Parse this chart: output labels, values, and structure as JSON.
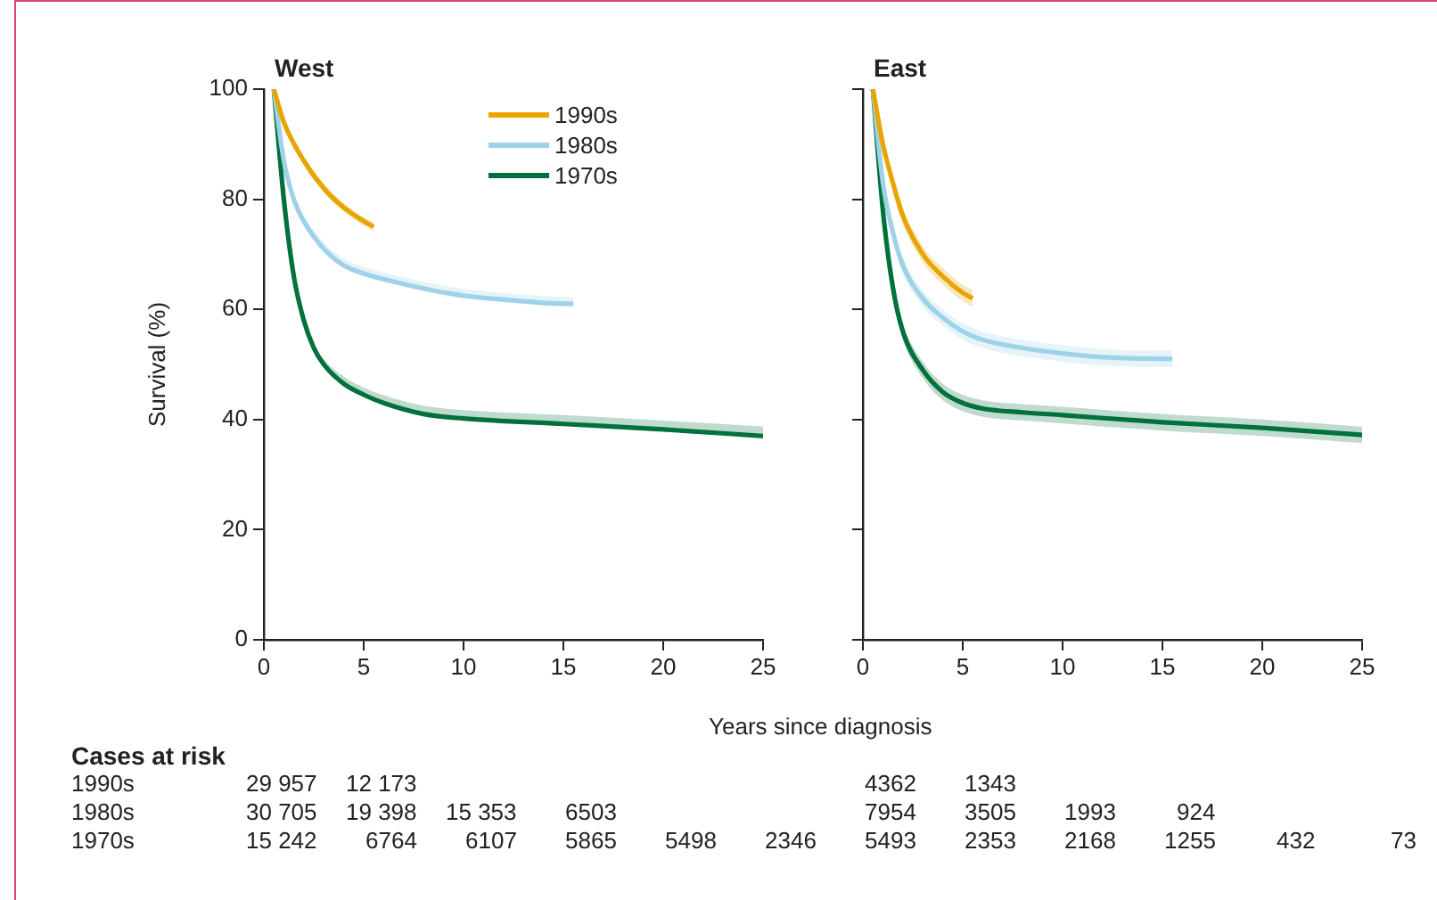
{
  "chart_data": [
    {
      "type": "line",
      "title": "West",
      "xlabel": "Years since diagnosis",
      "ylabel": "Survival (%)",
      "xlim": [
        0,
        25
      ],
      "xticks": [
        0,
        5,
        10,
        15,
        20,
        25
      ],
      "ylim": [
        0,
        100
      ],
      "yticks": [
        0,
        20,
        40,
        60,
        80,
        100
      ],
      "grid": false,
      "legend": "top",
      "line_style": "solid",
      "marker": "none",
      "series": [
        {
          "name": "1990s",
          "color": "#e8a500",
          "x": [
            0.5,
            1,
            2,
            3,
            4,
            5,
            5.5
          ],
          "values": [
            100,
            94,
            87,
            82,
            78.5,
            76,
            75
          ],
          "lower": [
            100,
            93.2,
            86.2,
            81.2,
            77.7,
            75.2,
            74.2
          ],
          "upper": [
            100,
            94.8,
            87.8,
            82.8,
            79.3,
            76.8,
            75.8
          ]
        },
        {
          "name": "1980s",
          "color": "#9dd2e8",
          "x": [
            0.5,
            1,
            1.5,
            2,
            3,
            4,
            5,
            6,
            8,
            10,
            12,
            14,
            15.5
          ],
          "values": [
            100,
            87,
            80,
            76,
            71,
            68,
            66.5,
            65.5,
            63.8,
            62.5,
            61.8,
            61.2,
            61
          ],
          "lower": [
            100,
            86.5,
            79.5,
            75.5,
            70.5,
            67.5,
            66,
            65,
            63.3,
            62,
            61.3,
            60.7,
            60.5
          ],
          "upper": [
            100,
            87.5,
            80.5,
            77,
            72.2,
            69.2,
            67.7,
            66.7,
            65,
            63.7,
            63,
            62.4,
            62.2
          ]
        },
        {
          "name": "1970s",
          "color": "#00703c",
          "x": [
            0.5,
            1,
            1.5,
            2,
            2.5,
            3,
            4,
            5,
            6,
            8,
            10,
            15,
            20,
            25
          ],
          "values": [
            100,
            80,
            66,
            58,
            53,
            50,
            46.5,
            44.5,
            43,
            41,
            40.2,
            39.2,
            38.2,
            37
          ],
          "lower": [
            100,
            79.7,
            65.7,
            57.7,
            52.7,
            49.7,
            46.2,
            44.2,
            42.7,
            40.7,
            39.9,
            38.9,
            37.9,
            36.7
          ],
          "upper": [
            100,
            80.5,
            66.8,
            59,
            54,
            51,
            47.8,
            45.8,
            44.4,
            42.5,
            41.7,
            40.8,
            39.8,
            38.7
          ]
        }
      ],
      "annotations": [
        "Cases at risk",
        "1990s  29 957  12 173",
        "1980s  30 705  19 398  15 353  6503",
        "1970s  15 242  6764  6107  5865  5498  2346"
      ]
    },
    {
      "type": "line",
      "title": "East",
      "xlim": [
        0,
        25
      ],
      "xticks": [
        0,
        5,
        10,
        15,
        20,
        25
      ],
      "ylim": [
        0,
        100
      ],
      "yticks": [
        0,
        20,
        40,
        60,
        80,
        100
      ],
      "grid": false,
      "tick_labels": "x",
      "line_style": "solid",
      "marker": "none",
      "series": [
        {
          "color": "#e8a500",
          "x": [
            0.5,
            1,
            1.5,
            2,
            3,
            4,
            5,
            5.5
          ],
          "values": [
            100,
            90,
            83,
            77,
            70,
            66,
            63,
            62
          ],
          "lower": [
            100,
            89,
            81.5,
            75.5,
            68.5,
            64.5,
            61.5,
            60.5
          ],
          "upper": [
            100,
            91,
            84.5,
            78.5,
            71.5,
            67.5,
            64.5,
            63.5
          ]
        },
        {
          "color": "#9dd2e8",
          "x": [
            0.5,
            1,
            1.5,
            2,
            3,
            4,
            5,
            6,
            8,
            10,
            12,
            15.5
          ],
          "values": [
            100,
            83,
            74,
            68,
            62,
            58.5,
            56,
            54.5,
            53,
            52,
            51.3,
            51
          ],
          "lower": [
            100,
            81.5,
            72.5,
            66.5,
            60.5,
            57,
            54.5,
            53,
            51.5,
            50.5,
            49.8,
            49.5
          ],
          "upper": [
            100,
            84.5,
            75.5,
            69.5,
            63.5,
            60,
            57.5,
            56,
            54.5,
            53.5,
            52.8,
            52.5
          ]
        },
        {
          "color": "#00703c",
          "x": [
            0.5,
            1,
            1.5,
            2,
            3,
            4,
            5,
            6,
            8,
            10,
            15,
            20,
            25
          ],
          "values": [
            100,
            78,
            64,
            56,
            49,
            45,
            43,
            42,
            41.3,
            40.8,
            39.5,
            38.5,
            37.2
          ],
          "lower": [
            100,
            76.5,
            62.5,
            54.5,
            47.5,
            43.5,
            41.5,
            40.5,
            39.8,
            39.3,
            38,
            37,
            35.7
          ],
          "upper": [
            100,
            79.5,
            65.5,
            57.5,
            50.5,
            46.5,
            44.5,
            43.5,
            42.8,
            42.3,
            41,
            40,
            38.7
          ]
        }
      ],
      "annotations": [
        "4362  1343",
        "7954  3505  1993  924",
        "5493  2353  2168  1255  432  73"
      ]
    }
  ]
}
